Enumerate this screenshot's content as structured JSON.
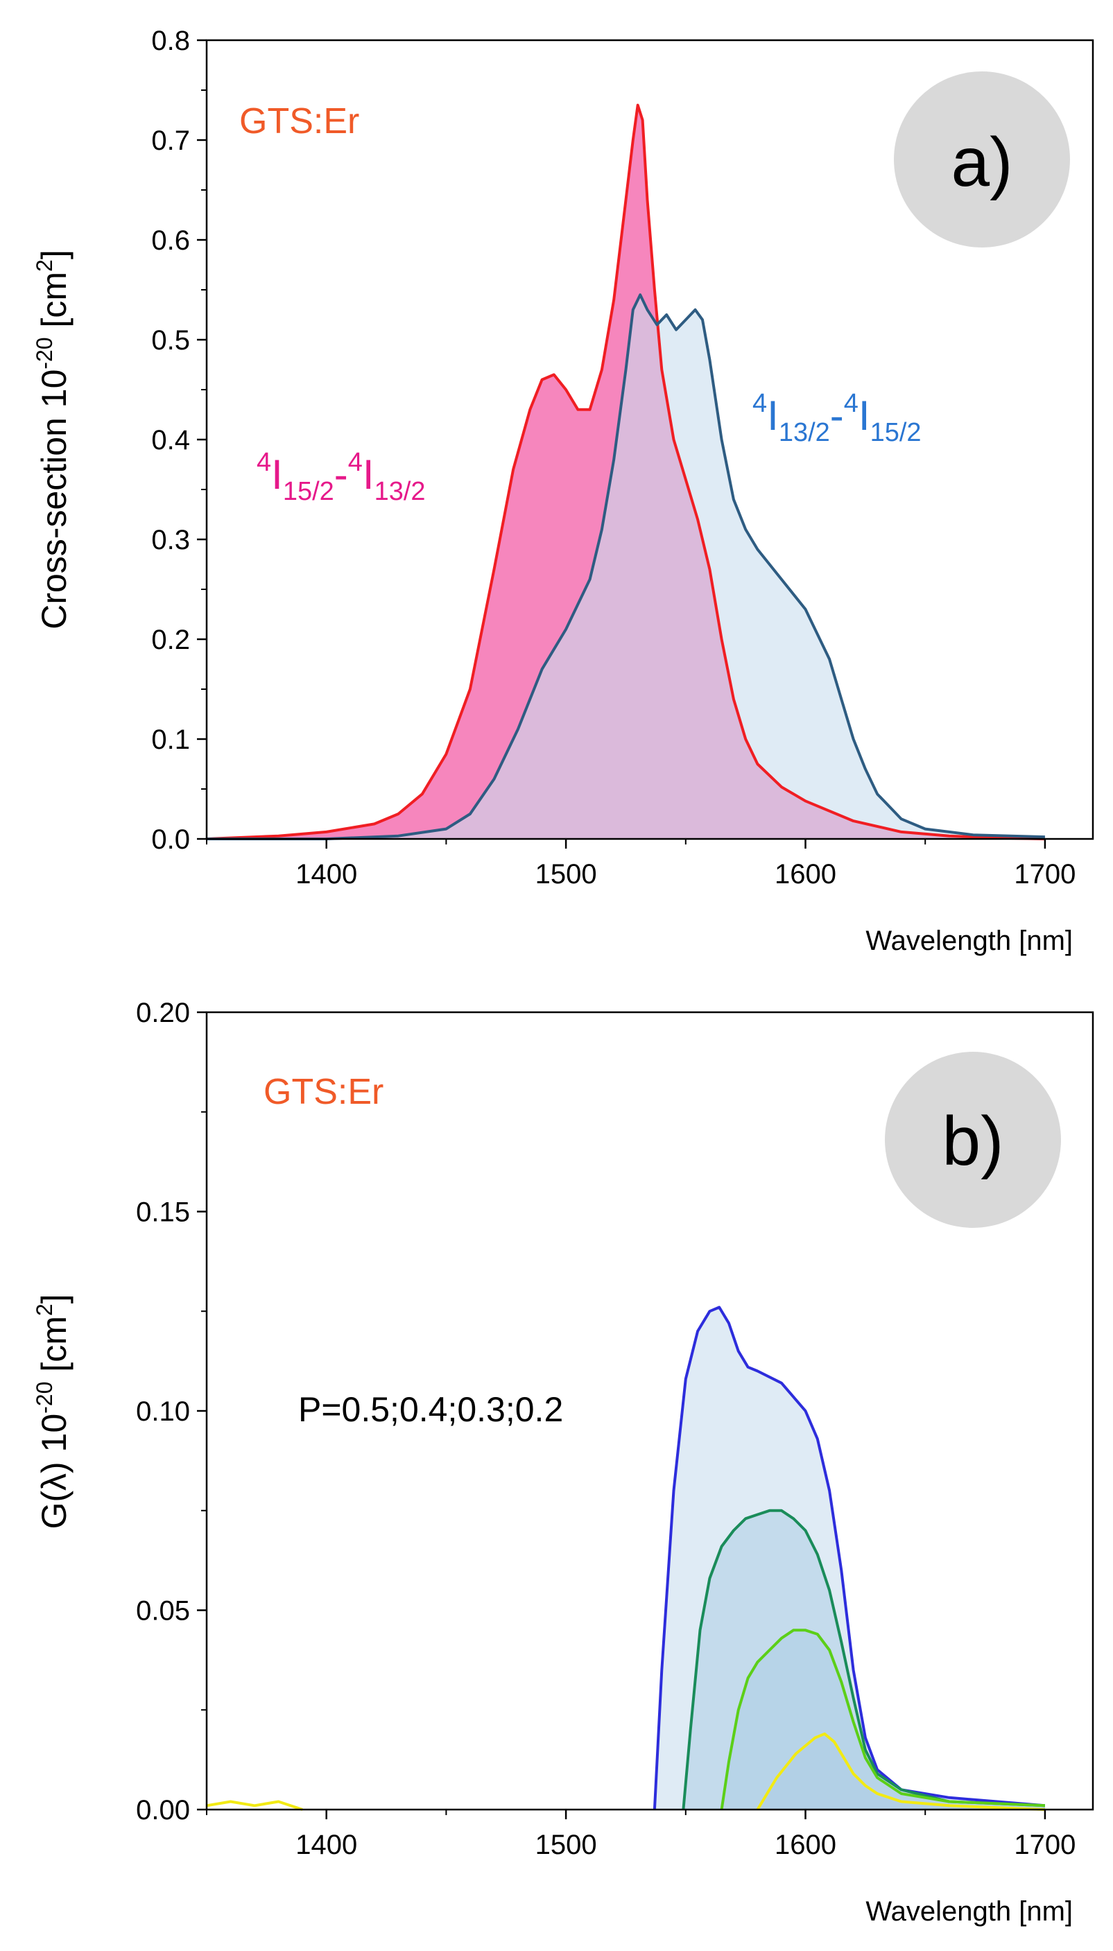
{
  "chart_data": [
    {
      "panel": "a",
      "type": "area",
      "title": "",
      "xlabel": "Wavelength [nm]",
      "ylabel": "Cross-section 10-20 [cm2]",
      "ylabel_parts": {
        "base": "Cross-section 10",
        "exp": "-20",
        "unit_open": " [cm",
        "unit_exp": "2",
        "unit_close": "]"
      },
      "xlim": [
        1350,
        1720
      ],
      "ylim": [
        0,
        0.8
      ],
      "xticks": [
        1400,
        1500,
        1600,
        1700
      ],
      "yticks": [
        0.0,
        0.1,
        0.2,
        0.3,
        0.4,
        0.5,
        0.6,
        0.7,
        0.8
      ],
      "ytick_labels": [
        "0.0",
        "0.1",
        "0.2",
        "0.3",
        "0.4",
        "0.5",
        "0.6",
        "0.7",
        "0.8"
      ],
      "grid": false,
      "sample_label": "GTS:Er",
      "panel_label": "a)",
      "colors": {
        "sample_label": "#f05a28",
        "badge": "#d9d9d9"
      },
      "series": [
        {
          "name": "4I15/2-4I13/2",
          "label_parts": [
            "4",
            "I",
            "15/2",
            "-",
            "4",
            "I",
            "13/2"
          ],
          "label_color": "#e6198a",
          "line_color": "#f01e23",
          "fill_color": "#f471b2",
          "fill_opacity": 0.85,
          "x": [
            1350,
            1380,
            1400,
            1420,
            1430,
            1440,
            1450,
            1460,
            1470,
            1478,
            1485,
            1490,
            1495,
            1500,
            1505,
            1510,
            1515,
            1520,
            1525,
            1528,
            1530,
            1532,
            1534,
            1537,
            1540,
            1545,
            1550,
            1555,
            1560,
            1565,
            1570,
            1575,
            1580,
            1590,
            1600,
            1620,
            1640,
            1660,
            1680,
            1700
          ],
          "y": [
            0.0,
            0.003,
            0.007,
            0.015,
            0.025,
            0.045,
            0.085,
            0.15,
            0.27,
            0.37,
            0.43,
            0.46,
            0.465,
            0.45,
            0.43,
            0.43,
            0.47,
            0.54,
            0.64,
            0.7,
            0.735,
            0.72,
            0.64,
            0.55,
            0.47,
            0.4,
            0.36,
            0.32,
            0.27,
            0.2,
            0.14,
            0.1,
            0.075,
            0.052,
            0.038,
            0.018,
            0.007,
            0.003,
            0.001,
            0.0
          ]
        },
        {
          "name": "4I13/2-4I15/2",
          "label_parts": [
            "4",
            "I",
            "13/2",
            "-",
            "4",
            "I",
            "15/2"
          ],
          "label_color": "#2a76d2",
          "line_color": "#2e5c82",
          "fill_color": "#c9deef",
          "fill_opacity": 0.6,
          "x": [
            1350,
            1400,
            1430,
            1450,
            1460,
            1470,
            1480,
            1490,
            1500,
            1510,
            1515,
            1520,
            1525,
            1528,
            1531,
            1534,
            1538,
            1542,
            1546,
            1550,
            1554,
            1557,
            1560,
            1565,
            1570,
            1575,
            1580,
            1590,
            1600,
            1610,
            1615,
            1620,
            1625,
            1630,
            1640,
            1650,
            1670,
            1700
          ],
          "y": [
            0.0,
            0.0,
            0.003,
            0.01,
            0.025,
            0.06,
            0.11,
            0.17,
            0.21,
            0.26,
            0.31,
            0.38,
            0.47,
            0.53,
            0.545,
            0.53,
            0.515,
            0.525,
            0.51,
            0.52,
            0.53,
            0.52,
            0.48,
            0.4,
            0.34,
            0.31,
            0.29,
            0.26,
            0.23,
            0.18,
            0.14,
            0.1,
            0.07,
            0.045,
            0.02,
            0.01,
            0.004,
            0.002
          ]
        }
      ]
    },
    {
      "panel": "b",
      "type": "area",
      "title": "",
      "xlabel": "Wavelength [nm]",
      "ylabel": "G(λ) 10-20 [cm2]",
      "ylabel_parts": {
        "base": "G(λ) 10",
        "exp": "-20",
        "unit_open": " [cm",
        "unit_exp": "2",
        "unit_close": "]"
      },
      "xlim": [
        1350,
        1720
      ],
      "ylim": [
        0,
        0.2
      ],
      "xticks": [
        1400,
        1500,
        1600,
        1700
      ],
      "yticks": [
        0.0,
        0.05,
        0.1,
        0.15,
        0.2
      ],
      "ytick_labels": [
        "0.00",
        "0.05",
        "0.10",
        "0.15",
        "0.20"
      ],
      "grid": false,
      "sample_label": "GTS:Er",
      "panel_label": "b)",
      "annotation": "P=0.5;0.4;0.3;0.2",
      "colors": {
        "sample_label": "#f05a28",
        "badge": "#d9d9d9"
      },
      "series": [
        {
          "name": "P=0.5",
          "line_color": "#2d2ddc",
          "fill_color": "#c9deef",
          "fill_opacity": 0.6,
          "x": [
            1537,
            1540,
            1545,
            1550,
            1555,
            1560,
            1564,
            1568,
            1572,
            1576,
            1580,
            1590,
            1600,
            1605,
            1610,
            1615,
            1620,
            1625,
            1630,
            1640,
            1660,
            1680,
            1700
          ],
          "y": [
            0.0,
            0.035,
            0.08,
            0.108,
            0.12,
            0.125,
            0.126,
            0.122,
            0.115,
            0.111,
            0.11,
            0.107,
            0.1,
            0.093,
            0.08,
            0.06,
            0.035,
            0.018,
            0.01,
            0.005,
            0.003,
            0.002,
            0.001
          ]
        },
        {
          "name": "P=0.4",
          "line_color": "#1a8c5a",
          "fill_color": "#a9cbe4",
          "fill_opacity": 0.5,
          "x": [
            1549,
            1552,
            1556,
            1560,
            1565,
            1570,
            1575,
            1580,
            1585,
            1590,
            1595,
            1600,
            1605,
            1610,
            1615,
            1620,
            1625,
            1630,
            1640,
            1660,
            1700
          ],
          "y": [
            0.0,
            0.02,
            0.045,
            0.058,
            0.066,
            0.07,
            0.073,
            0.074,
            0.075,
            0.075,
            0.073,
            0.07,
            0.064,
            0.055,
            0.042,
            0.028,
            0.015,
            0.009,
            0.005,
            0.002,
            0.001
          ]
        },
        {
          "name": "P=0.3",
          "line_color": "#5ccf18",
          "fill_color": "#a9cbe4",
          "fill_opacity": 0.45,
          "x": [
            1565,
            1568,
            1572,
            1576,
            1580,
            1585,
            1590,
            1595,
            1600,
            1605,
            1610,
            1615,
            1620,
            1625,
            1630,
            1640,
            1660,
            1700
          ],
          "y": [
            0.0,
            0.012,
            0.025,
            0.033,
            0.037,
            0.04,
            0.043,
            0.045,
            0.045,
            0.044,
            0.04,
            0.032,
            0.022,
            0.013,
            0.008,
            0.004,
            0.002,
            0.001
          ]
        },
        {
          "name": "P=0.2",
          "line_color": "#f2ea14",
          "fill_color": "#a9cbe4",
          "fill_opacity": 0.4,
          "x": [
            1580,
            1584,
            1588,
            1592,
            1596,
            1600,
            1604,
            1608,
            1612,
            1616,
            1620,
            1625,
            1630,
            1640,
            1660,
            1700
          ],
          "y": [
            0.0,
            0.004,
            0.008,
            0.011,
            0.014,
            0.016,
            0.018,
            0.019,
            0.017,
            0.013,
            0.009,
            0.006,
            0.004,
            0.002,
            0.001,
            0.0
          ]
        },
        {
          "name": "P=0.2 (short wavelength)",
          "line_color": "#f2ea14",
          "fill_color": "none",
          "fill_opacity": 0,
          "x": [
            1350,
            1360,
            1370,
            1380,
            1390
          ],
          "y": [
            0.001,
            0.002,
            0.001,
            0.002,
            0.0
          ]
        }
      ]
    }
  ]
}
